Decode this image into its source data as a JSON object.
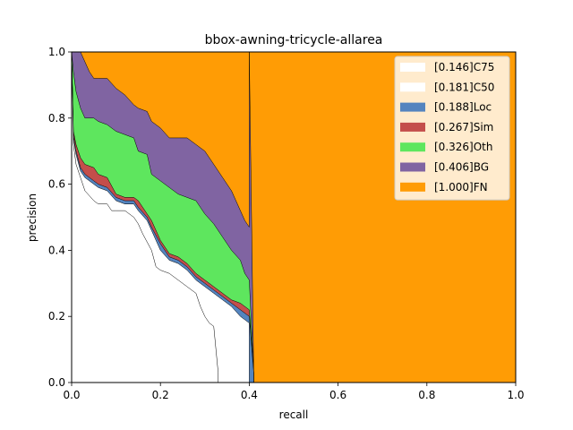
{
  "chart_data": {
    "type": "area",
    "title": "bbox-awning-tricycle-allarea",
    "xlabel": "recall",
    "ylabel": "precision",
    "xlim": [
      0,
      1
    ],
    "ylim": [
      0,
      1
    ],
    "xticks": [
      "0.0",
      "0.2",
      "0.4",
      "0.6",
      "0.8",
      "1.0"
    ],
    "yticks": [
      "0.0",
      "0.2",
      "0.4",
      "0.6",
      "0.8",
      "1.0"
    ],
    "legend_position": "top-right",
    "grid": false,
    "series": [
      {
        "name": "[0.146]C75",
        "color": "#ffffff",
        "x": [
          0,
          0.004,
          0.01,
          0.02,
          0.03,
          0.05,
          0.06,
          0.08,
          0.09,
          0.1,
          0.12,
          0.14,
          0.15,
          0.16,
          0.18,
          0.19,
          0.2,
          0.22,
          0.24,
          0.25,
          0.26,
          0.28,
          0.29,
          0.3,
          0.31,
          0.32,
          0.325,
          0.33,
          0.33
        ],
        "y": [
          1.0,
          0.72,
          0.66,
          0.62,
          0.58,
          0.55,
          0.54,
          0.54,
          0.52,
          0.52,
          0.52,
          0.5,
          0.48,
          0.45,
          0.4,
          0.35,
          0.34,
          0.33,
          0.31,
          0.3,
          0.29,
          0.27,
          0.23,
          0.2,
          0.18,
          0.17,
          0.1,
          0.03,
          0.0
        ]
      },
      {
        "name": "[0.181]C50",
        "color": "#ffffff",
        "x": [
          0,
          0.004,
          0.01,
          0.02,
          0.03,
          0.05,
          0.06,
          0.08,
          0.1,
          0.12,
          0.14,
          0.15,
          0.17,
          0.18,
          0.2,
          0.22,
          0.24,
          0.26,
          0.28,
          0.3,
          0.32,
          0.34,
          0.36,
          0.38,
          0.39,
          0.4,
          0.4
        ],
        "y": [
          1.0,
          0.74,
          0.69,
          0.64,
          0.62,
          0.6,
          0.59,
          0.58,
          0.55,
          0.54,
          0.54,
          0.52,
          0.49,
          0.46,
          0.4,
          0.37,
          0.36,
          0.34,
          0.31,
          0.29,
          0.27,
          0.25,
          0.23,
          0.2,
          0.19,
          0.18,
          0.0
        ]
      },
      {
        "name": "[0.188]Loc",
        "color": "#5484bf",
        "x": [
          0,
          0.004,
          0.01,
          0.02,
          0.03,
          0.05,
          0.06,
          0.08,
          0.1,
          0.12,
          0.14,
          0.15,
          0.17,
          0.18,
          0.2,
          0.22,
          0.24,
          0.26,
          0.28,
          0.3,
          0.32,
          0.34,
          0.36,
          0.38,
          0.39,
          0.4,
          0.41,
          0.41
        ],
        "y": [
          1.0,
          0.75,
          0.7,
          0.65,
          0.63,
          0.61,
          0.6,
          0.59,
          0.56,
          0.55,
          0.55,
          0.53,
          0.5,
          0.47,
          0.42,
          0.38,
          0.37,
          0.35,
          0.32,
          0.3,
          0.28,
          0.26,
          0.24,
          0.22,
          0.21,
          0.2,
          0.03,
          0.0
        ]
      },
      {
        "name": "[0.267]Sim",
        "color": "#c44e4b",
        "x": [
          0,
          0.004,
          0.01,
          0.02,
          0.03,
          0.05,
          0.06,
          0.08,
          0.1,
          0.12,
          0.14,
          0.15,
          0.17,
          0.18,
          0.2,
          0.22,
          0.24,
          0.26,
          0.28,
          0.3,
          0.32,
          0.34,
          0.36,
          0.38,
          0.39,
          0.4,
          0.41,
          0.41
        ],
        "y": [
          1.0,
          0.76,
          0.72,
          0.68,
          0.66,
          0.65,
          0.63,
          0.62,
          0.57,
          0.56,
          0.56,
          0.55,
          0.51,
          0.49,
          0.43,
          0.39,
          0.38,
          0.36,
          0.33,
          0.31,
          0.29,
          0.27,
          0.25,
          0.24,
          0.23,
          0.22,
          0.03,
          0.0
        ]
      },
      {
        "name": "[0.326]Oth",
        "color": "#5ee65e",
        "x": [
          0,
          0.004,
          0.01,
          0.02,
          0.03,
          0.05,
          0.06,
          0.08,
          0.1,
          0.12,
          0.14,
          0.15,
          0.17,
          0.18,
          0.2,
          0.22,
          0.24,
          0.26,
          0.28,
          0.3,
          0.32,
          0.34,
          0.36,
          0.38,
          0.39,
          0.4,
          0.41,
          0.41
        ],
        "y": [
          1.0,
          0.94,
          0.88,
          0.83,
          0.8,
          0.8,
          0.79,
          0.78,
          0.76,
          0.75,
          0.74,
          0.7,
          0.69,
          0.63,
          0.61,
          0.59,
          0.57,
          0.56,
          0.55,
          0.51,
          0.48,
          0.44,
          0.4,
          0.37,
          0.33,
          0.31,
          0.03,
          0.0
        ]
      },
      {
        "name": "[0.406]BG",
        "color": "#8064a2",
        "x": [
          0,
          0.02,
          0.03,
          0.04,
          0.05,
          0.06,
          0.08,
          0.1,
          0.12,
          0.14,
          0.15,
          0.17,
          0.18,
          0.2,
          0.22,
          0.24,
          0.26,
          0.28,
          0.3,
          0.32,
          0.34,
          0.36,
          0.38,
          0.39,
          0.4,
          0.4,
          0.41,
          0.41
        ],
        "y": [
          1.0,
          1.0,
          0.97,
          0.94,
          0.92,
          0.92,
          0.92,
          0.89,
          0.87,
          0.84,
          0.83,
          0.82,
          0.79,
          0.77,
          0.74,
          0.74,
          0.74,
          0.72,
          0.7,
          0.66,
          0.62,
          0.58,
          0.52,
          0.49,
          0.47,
          1.0,
          0.03,
          0.0
        ]
      },
      {
        "name": "[1.000]FN",
        "color": "#ff9c05",
        "x": [
          0,
          0.4,
          0.4,
          1.0,
          1.0
        ],
        "y": [
          1.0,
          1.0,
          1.0,
          1.0,
          0.0
        ]
      }
    ]
  }
}
